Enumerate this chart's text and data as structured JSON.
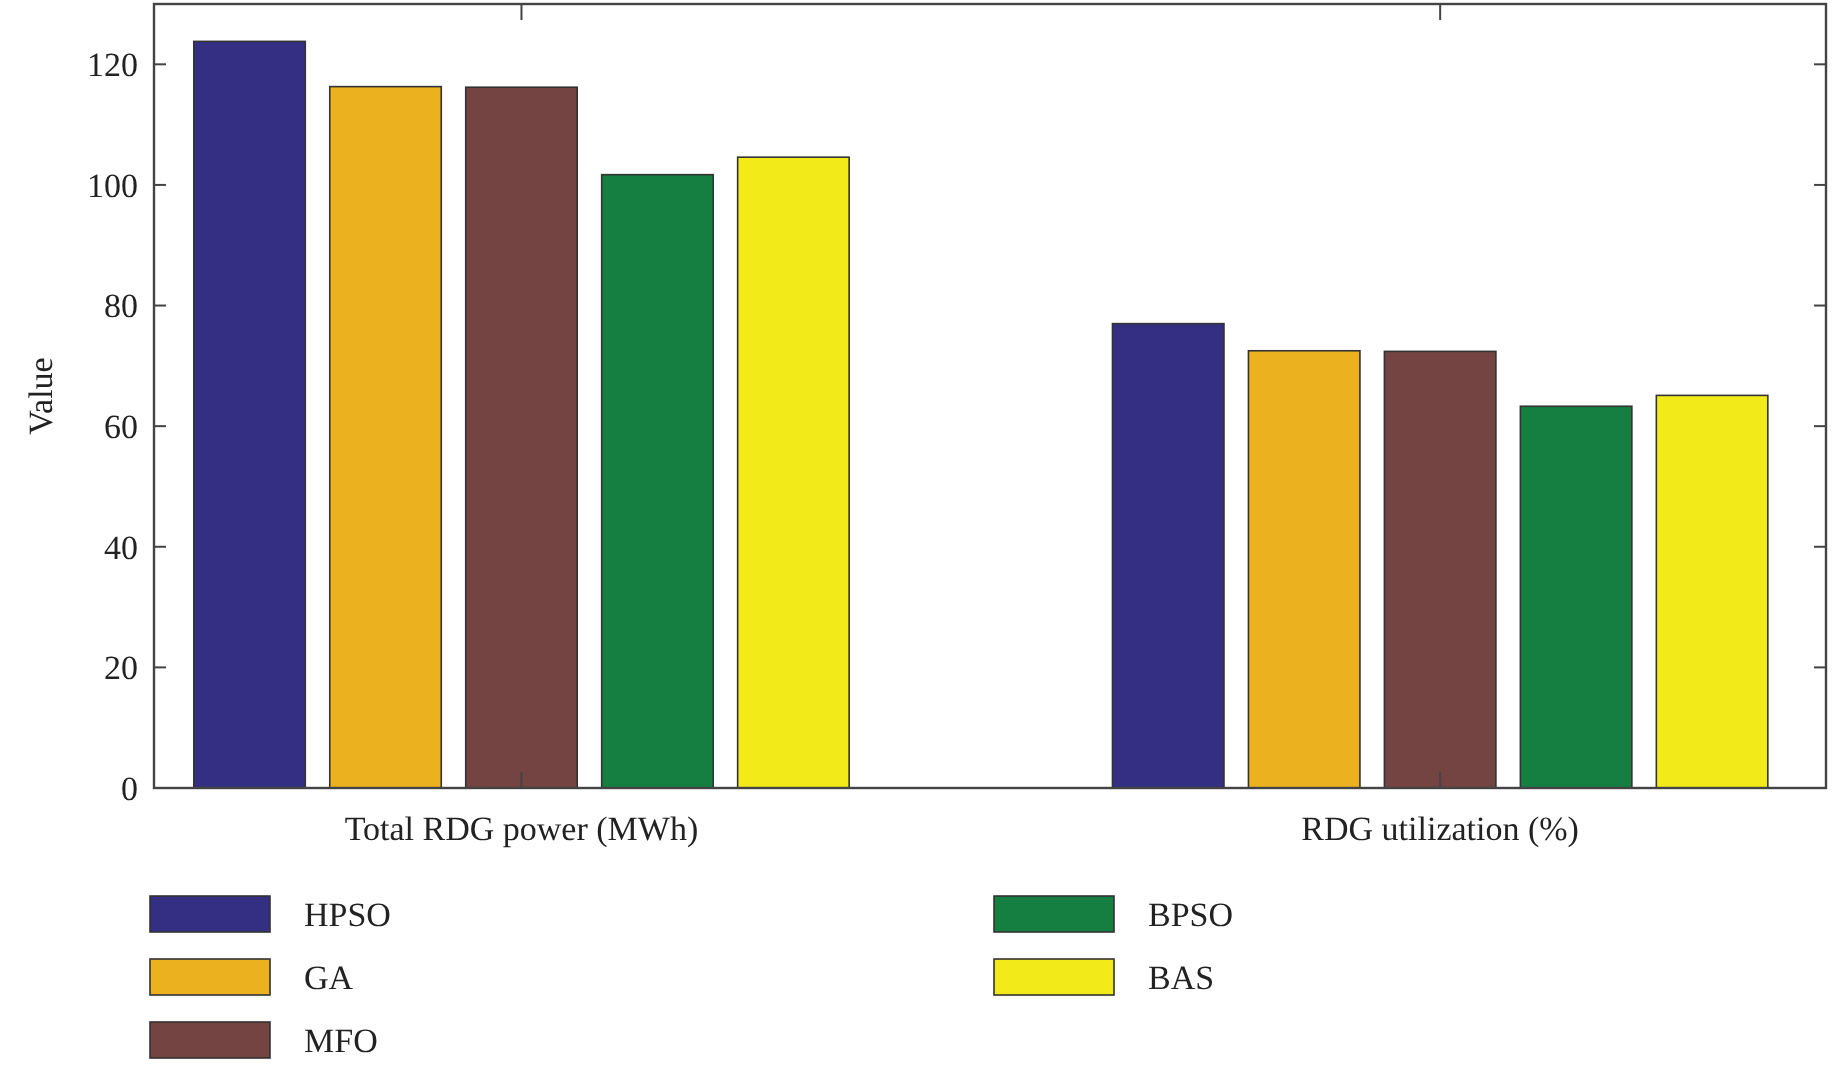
{
  "chart_data": {
    "type": "bar",
    "ylabel": "Value",
    "categories": [
      "Total RDG power (MWh)",
      "RDG utilization (%)"
    ],
    "series": [
      {
        "name": "HPSO",
        "color": "#352f84",
        "values": [
          123.8,
          77.0
        ]
      },
      {
        "name": "GA",
        "color": "#ebb11f",
        "values": [
          116.3,
          72.5
        ]
      },
      {
        "name": "MFO",
        "color": "#744442",
        "values": [
          116.2,
          72.4
        ]
      },
      {
        "name": "BPSO",
        "color": "#147f41",
        "values": [
          101.7,
          63.3
        ]
      },
      {
        "name": "BAS",
        "color": "#f2ea19",
        "values": [
          104.6,
          65.1
        ]
      }
    ],
    "ylim": [
      0,
      130
    ],
    "yticks": [
      0,
      20,
      40,
      60,
      80,
      100,
      120
    ],
    "grid": false,
    "legend": "bottom"
  }
}
